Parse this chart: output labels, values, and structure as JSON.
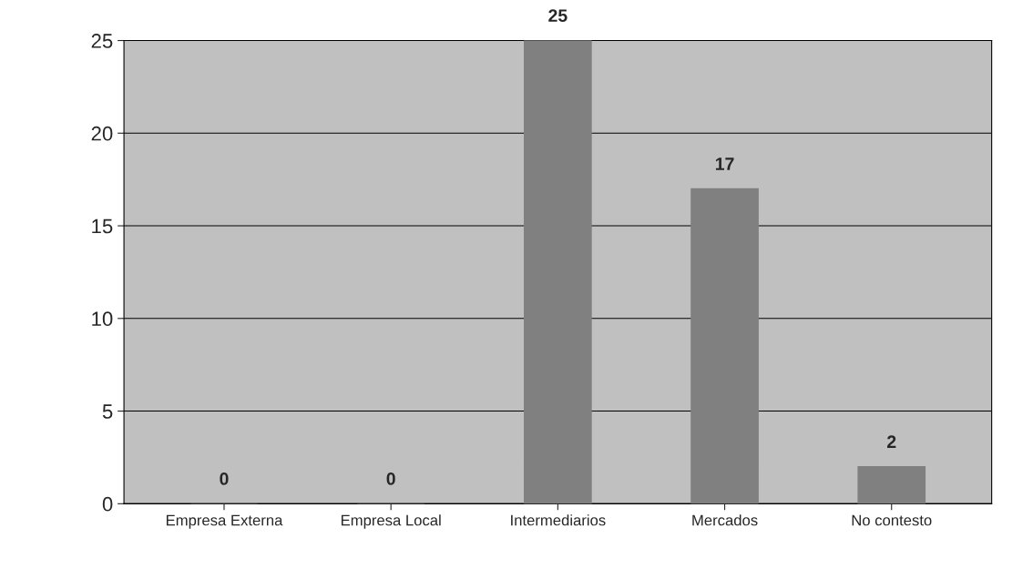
{
  "chart_data": {
    "type": "bar",
    "categories": [
      "Empresa Externa",
      "Empresa Local",
      "Intermediarios",
      "Mercados",
      "No contesto"
    ],
    "values": [
      0,
      0,
      25,
      17,
      2
    ],
    "color": "#808080",
    "ylim": [
      0,
      25
    ],
    "yticks": [
      0,
      5,
      10,
      15,
      20,
      25
    ],
    "grid": "y",
    "data_labels": true
  }
}
